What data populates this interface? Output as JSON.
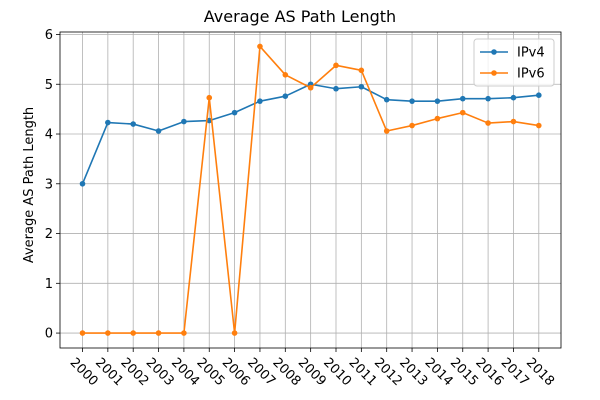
{
  "chart_data": {
    "type": "line",
    "title": "Average AS Path Length",
    "xlabel": "",
    "ylabel": "Average AS Path Length",
    "categories": [
      "2000",
      "2001",
      "2002",
      "2003",
      "2004",
      "2005",
      "2006",
      "2007",
      "2008",
      "2009",
      "2010",
      "2011",
      "2012",
      "2013",
      "2014",
      "2015",
      "2016",
      "2017",
      "2018"
    ],
    "ylim": [
      -0.3,
      6.05
    ],
    "yticks": [
      0,
      1,
      2,
      3,
      4,
      5,
      6
    ],
    "grid": true,
    "legend_position": "top-right",
    "series": [
      {
        "name": "IPv4",
        "color": "#1f77b4",
        "values": [
          3.0,
          4.23,
          4.2,
          4.06,
          4.25,
          4.27,
          4.43,
          4.66,
          4.76,
          5.0,
          4.91,
          4.95,
          4.69,
          4.66,
          4.66,
          4.71,
          4.71,
          4.73,
          4.78
        ]
      },
      {
        "name": "IPv6",
        "color": "#ff7f0e",
        "values": [
          0.0,
          0.0,
          0.0,
          0.0,
          0.0,
          4.73,
          0.0,
          5.76,
          5.19,
          4.93,
          5.38,
          5.28,
          4.06,
          4.17,
          4.31,
          4.43,
          4.22,
          4.25,
          4.17
        ]
      }
    ]
  }
}
